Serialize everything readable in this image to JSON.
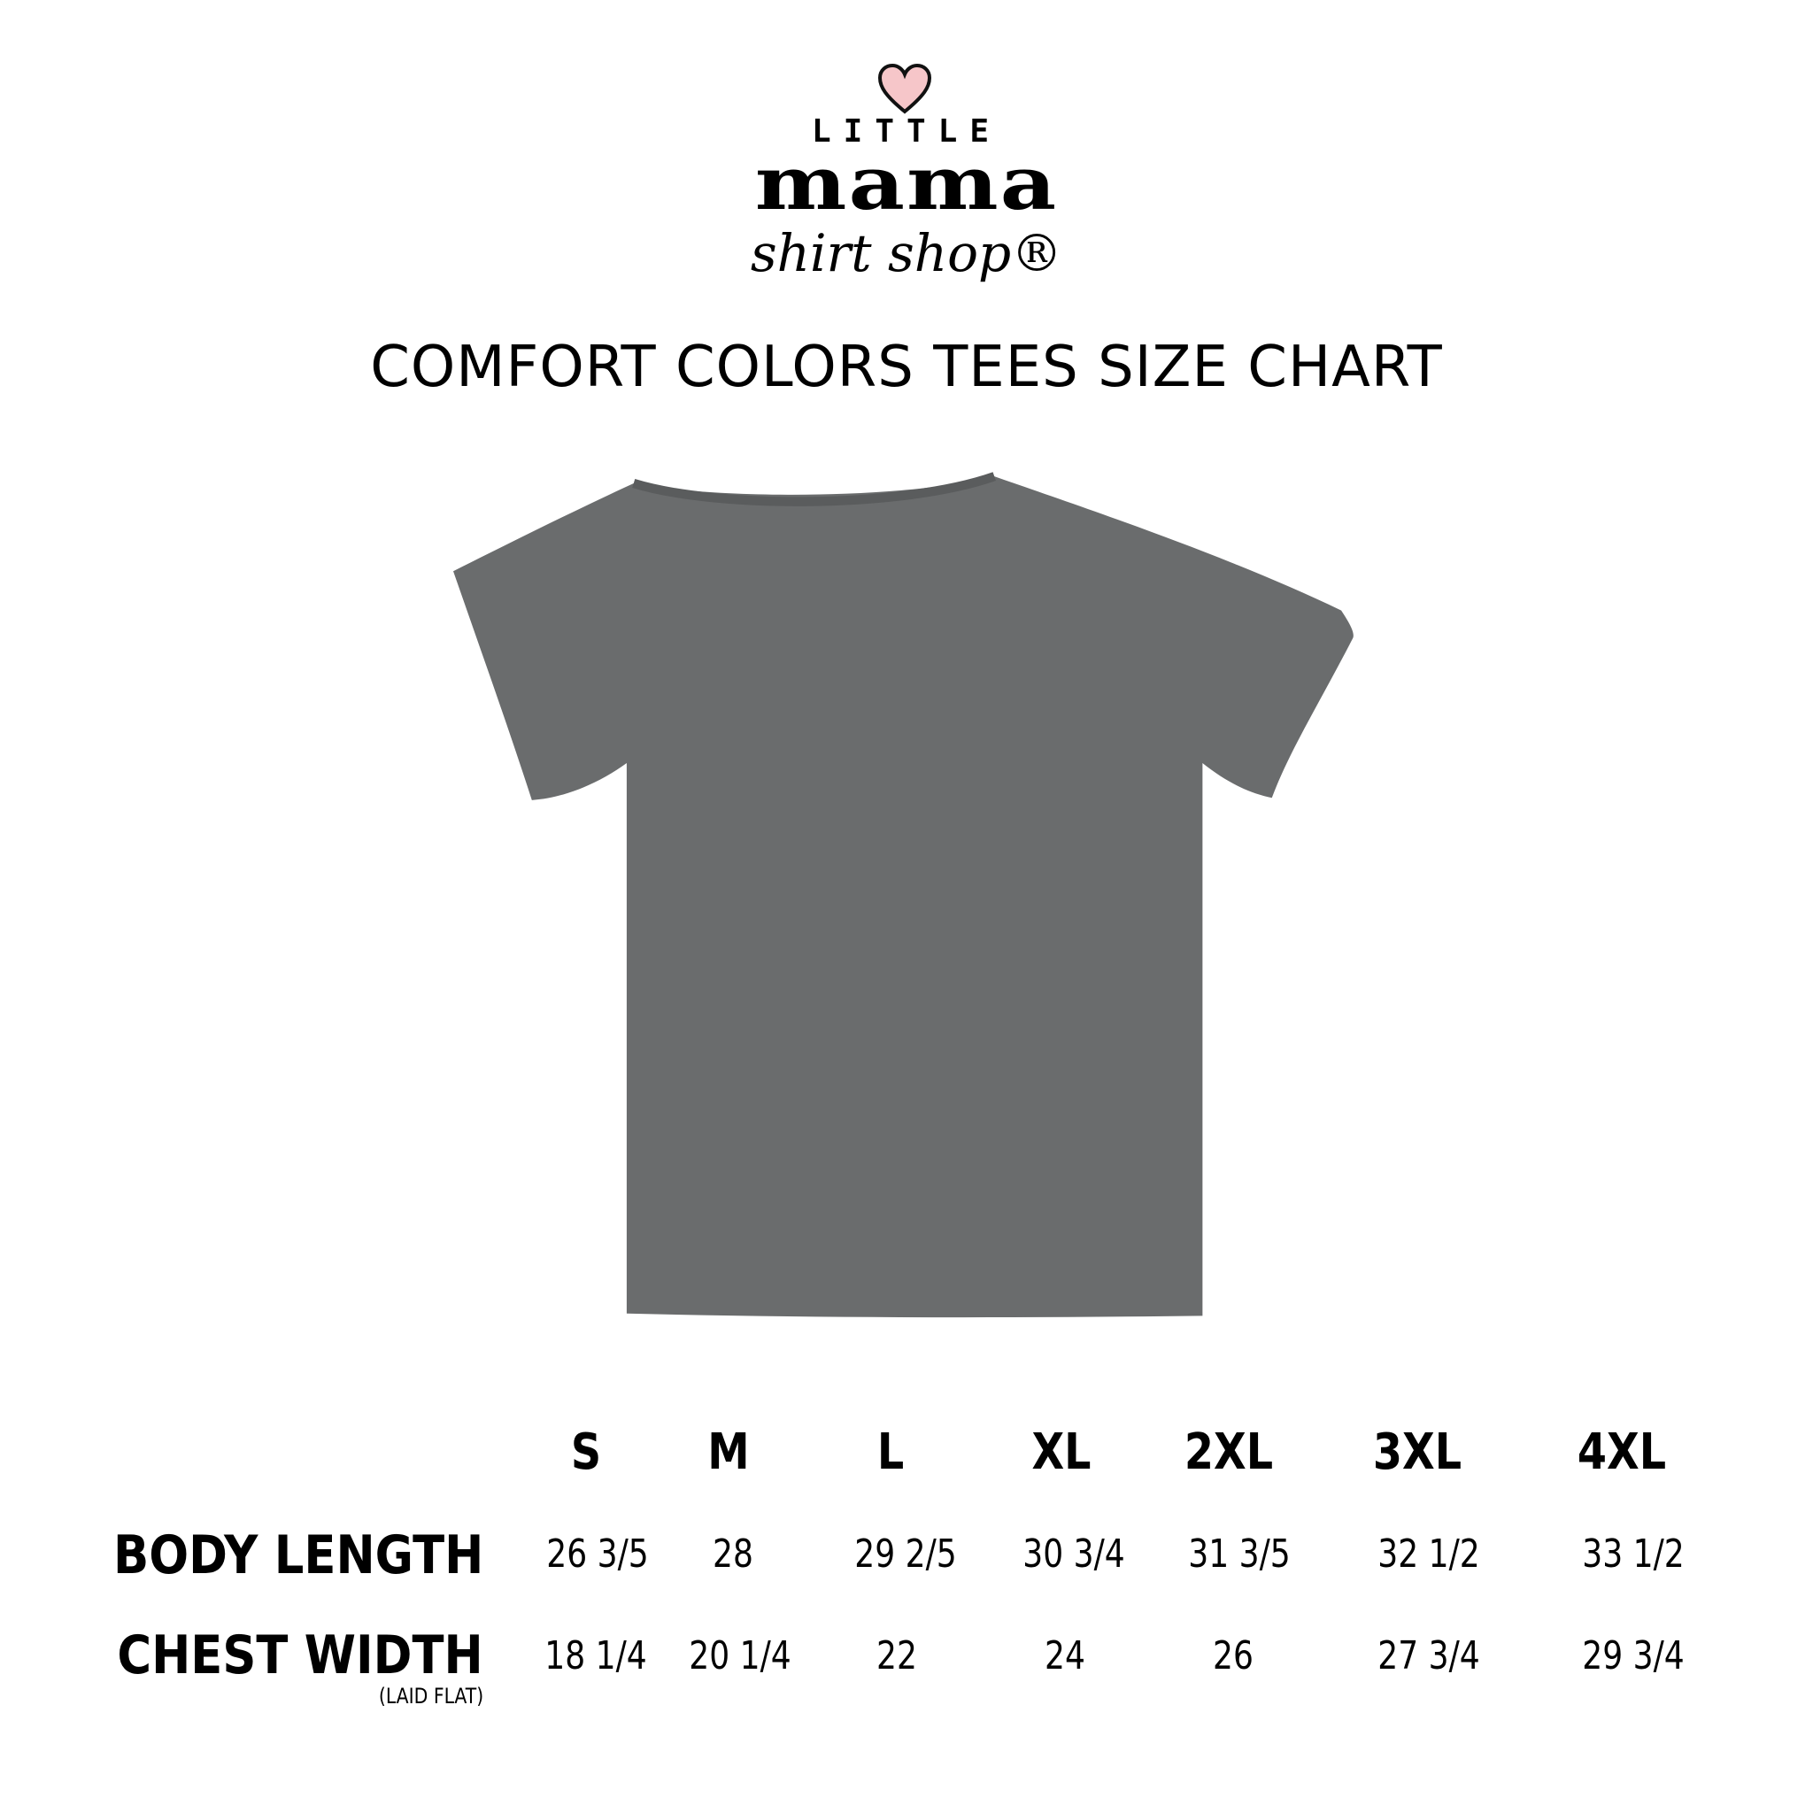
{
  "logo": {
    "line1": "LITTLE",
    "line2": "mama",
    "line3": "shirt shop®",
    "heart_color": "#f6c6c9"
  },
  "title": "COMFORT COLORS TEES SIZE CHART",
  "shirt_color": "#6a6c6d",
  "table": {
    "sizes": [
      "S",
      "M",
      "L",
      "XL",
      "2XL",
      "3XL",
      "4XL"
    ],
    "rows": [
      {
        "label": "BODY LENGTH",
        "sublabel": "",
        "values": [
          "26 3/5",
          "28",
          "29 2/5",
          "30 3/4",
          "31 3/5",
          "32 1/2",
          "33 1/2"
        ]
      },
      {
        "label": "CHEST WIDTH",
        "sublabel": "(LAID FLAT)",
        "values": [
          "18 1/4",
          "20 1/4",
          "22",
          "24",
          "26",
          "27 3/4",
          "29 3/4"
        ]
      }
    ]
  }
}
